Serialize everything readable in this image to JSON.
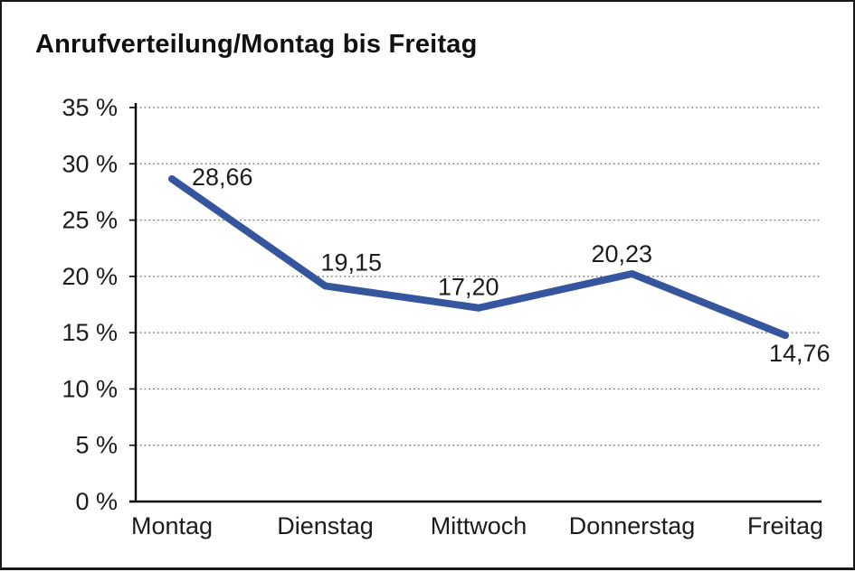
{
  "window": {
    "background_color": "#ffffff",
    "border_color": "#161616"
  },
  "chart_data": {
    "type": "line",
    "title": "Anrufverteilung/Montag bis Freitag",
    "categories": [
      "Montag",
      "Dienstag",
      "Mittwoch",
      "Donnerstag",
      "Freitag"
    ],
    "series": [
      {
        "name": "Anrufverteilung",
        "values": [
          28.66,
          19.15,
          17.2,
          20.23,
          14.76
        ]
      }
    ],
    "data_labels": [
      "28,66",
      "19,15",
      "17,20",
      "20,23",
      "14,76"
    ],
    "xlabel": "",
    "ylabel": "",
    "ylim": [
      0,
      35
    ],
    "y_ticks": [
      35,
      30,
      25,
      20,
      15,
      10,
      5,
      0
    ],
    "y_tick_labels": [
      "35 %",
      "30 %",
      "25 %",
      "20 %",
      "15 %",
      "10 %",
      "5 %",
      "0 %"
    ],
    "grid": "horizontal-dotted",
    "legend_position": "none",
    "line_color": "#35569E",
    "text_color": "#1c1c1c",
    "axis_color": "#000000"
  }
}
